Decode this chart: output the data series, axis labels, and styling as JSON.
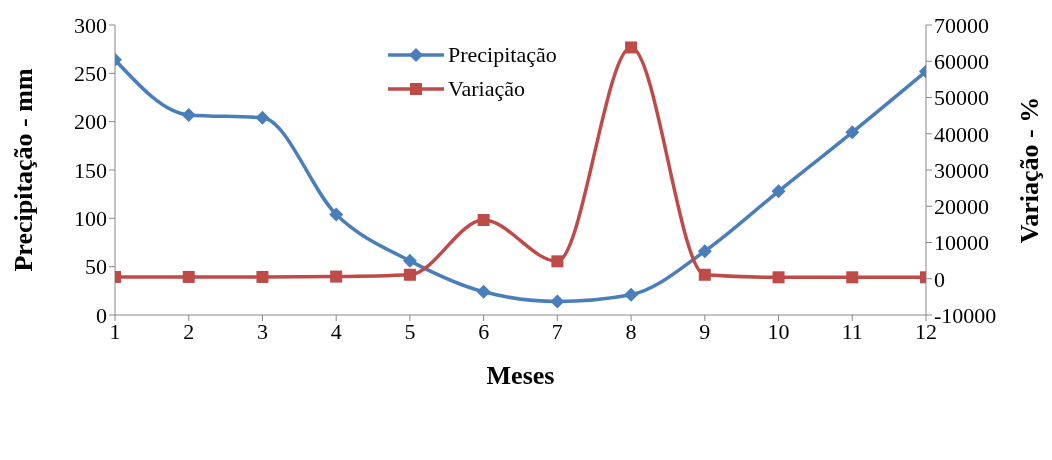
{
  "chart_data": {
    "type": "line",
    "xlabel": "Meses",
    "ylabel": "Precipitação - mm",
    "y2label": "Variação - %",
    "x": [
      1,
      2,
      3,
      4,
      5,
      6,
      7,
      8,
      9,
      10,
      11,
      12
    ],
    "xlim": [
      1,
      12
    ],
    "xticks": [
      1,
      2,
      3,
      4,
      5,
      6,
      7,
      8,
      9,
      10,
      11,
      12
    ],
    "ylim": [
      0,
      300
    ],
    "yticks": [
      0,
      50,
      100,
      150,
      200,
      250,
      300
    ],
    "y2lim": [
      -10000,
      70000
    ],
    "y2ticks": [
      -10000,
      0,
      10000,
      20000,
      30000,
      40000,
      50000,
      60000,
      70000
    ],
    "grid": false,
    "legend": "top",
    "line_style": "solid",
    "series": [
      {
        "name": "Precipitação",
        "color": "#4a7ebb",
        "marker": "diamond",
        "values": [
          264,
          207,
          204,
          104,
          56,
          24,
          14,
          21,
          66,
          128,
          189,
          252
        ]
      },
      {
        "name": "Variação",
        "color": "#be4b48",
        "marker": "square",
        "axis": "y2",
        "values": [
          500,
          500,
          500,
          600,
          1100,
          16200,
          4800,
          63800,
          1100,
          400,
          400,
          400
        ]
      }
    ]
  }
}
